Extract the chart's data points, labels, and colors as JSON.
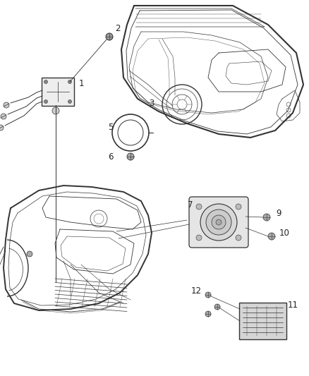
{
  "bg_color": "#ffffff",
  "line_color": "#333333",
  "label_color": "#222222",
  "fig_width": 4.38,
  "fig_height": 5.33,
  "dpi": 100,
  "font_size": 8.5
}
